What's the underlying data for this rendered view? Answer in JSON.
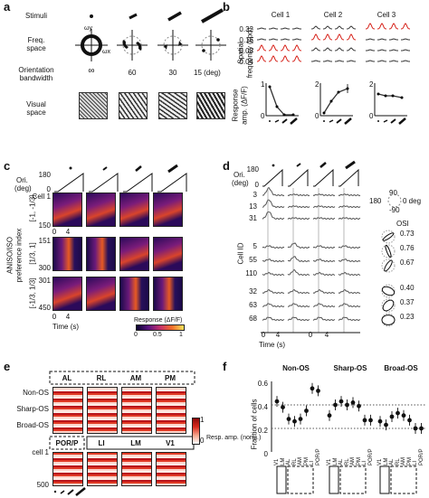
{
  "panels": {
    "a": "a",
    "b": "b",
    "c": "c",
    "d": "d",
    "e": "e",
    "f": "f"
  },
  "a": {
    "row_stimuli": "Stimuli",
    "row_freq": "Freq.",
    "row_freq2": "space",
    "row_orient": "Orientation",
    "row_orient2": "bandwidth",
    "row_visual": "Visual",
    "row_visual2": "space",
    "bandwidths": [
      "∞",
      "60",
      "30",
      "15 (deg)"
    ],
    "omega_y": "ωy",
    "omega_x": "ωx"
  },
  "b": {
    "cells": [
      "Cell 1",
      "Cell 2",
      "Cell 3"
    ],
    "ylabel1": "Spatial",
    "ylabel2": "frequency (cpd)",
    "freqs": [
      "0.32",
      "0.16",
      "0.08",
      "0.04"
    ],
    "ylabel_resp1": "Response",
    "ylabel_resp2": "amp. (ΔF/F)",
    "resp_ticks": [
      [
        "1",
        "0"
      ],
      [
        "2",
        "0"
      ],
      [
        "2",
        "0"
      ]
    ],
    "line_color": "#333333",
    "highlight_color": "#d7261e"
  },
  "c": {
    "ori_label": "Ori.",
    "ori_unit": "(deg)",
    "ori_ticks": [
      "180",
      "0"
    ],
    "cell_label": "Cell 1",
    "ylabel1": "ANISO/ISO",
    "ylabel2": "preference index",
    "groups": [
      {
        "range": "[-1, -1/3]",
        "top": "",
        "bottom": "150"
      },
      {
        "range": "[1/3, 1]",
        "top": "151",
        "bottom": "300"
      },
      {
        "range": "[-1/3, 1/3]",
        "top": "301",
        "bottom": "450"
      }
    ],
    "x_ticks": [
      "0",
      "4"
    ],
    "xlabel": "Time (s)",
    "cbar_label": "Response (ΔF/F)",
    "cbar_ticks": [
      "0",
      "0.5",
      "1"
    ]
  },
  "d": {
    "ori_label": "Ori.",
    "ori_unit": "(deg)",
    "ori_ticks": [
      "180",
      "0"
    ],
    "cell_ids": [
      "3",
      "13",
      "31",
      "5",
      "55",
      "110",
      "32",
      "63",
      "68"
    ],
    "cell_axis_label": "Cell ID",
    "x_ticks": [
      "0",
      "4"
    ],
    "xlabel": "Time (s)",
    "polar_top": "90",
    "polar_left": "180",
    "polar_right": "0 deg",
    "polar_bottom": "-90",
    "osi_label": "OSI",
    "osi_values": [
      "0.73",
      "0.76",
      "0.67",
      "0.40",
      "0.37",
      "0.23"
    ]
  },
  "e": {
    "areas_top": [
      "AL",
      "RL",
      "AM",
      "PM"
    ],
    "areas_bottom": [
      "POR/P",
      "LI",
      "LM",
      "V1"
    ],
    "row_labels": [
      "Non-OS",
      "Sharp-OS",
      "Broad-OS"
    ],
    "cell_top": "cell 1",
    "cell_bottom": "500",
    "cbar_ticks": [
      "1",
      "0"
    ],
    "cbar_label1": "Resp. amp. (norm.)"
  },
  "f": {
    "ylabel": "Fraction of cells",
    "y_ticks": [
      "0.6",
      "0.4",
      "0.2",
      "0"
    ],
    "groups": [
      "Non-OS",
      "Sharp-OS",
      "Broad-OS"
    ],
    "areas": [
      "V1",
      "LM",
      "AL",
      "RL",
      "AM",
      "PM",
      "LI",
      "POR/P"
    ]
  },
  "chart_data": {
    "type": "scatter",
    "title": "",
    "ylabel": "Fraction of cells",
    "ylim": [
      0,
      0.6
    ],
    "categories": [
      "V1",
      "LM",
      "AL",
      "RL",
      "AM",
      "PM",
      "LI",
      "POR/P"
    ],
    "series": [
      {
        "name": "Non-OS",
        "values": [
          0.43,
          0.38,
          0.28,
          0.26,
          0.28,
          0.35,
          0.54,
          0.52
        ]
      },
      {
        "name": "Sharp-OS",
        "values": [
          0.31,
          0.4,
          0.43,
          0.4,
          0.42,
          0.39,
          0.27,
          0.27
        ]
      },
      {
        "name": "Broad-OS",
        "values": [
          0.26,
          0.23,
          0.3,
          0.33,
          0.31,
          0.27,
          0.2,
          0.2
        ]
      }
    ],
    "grid": "dotted at 0.2, 0.4"
  }
}
